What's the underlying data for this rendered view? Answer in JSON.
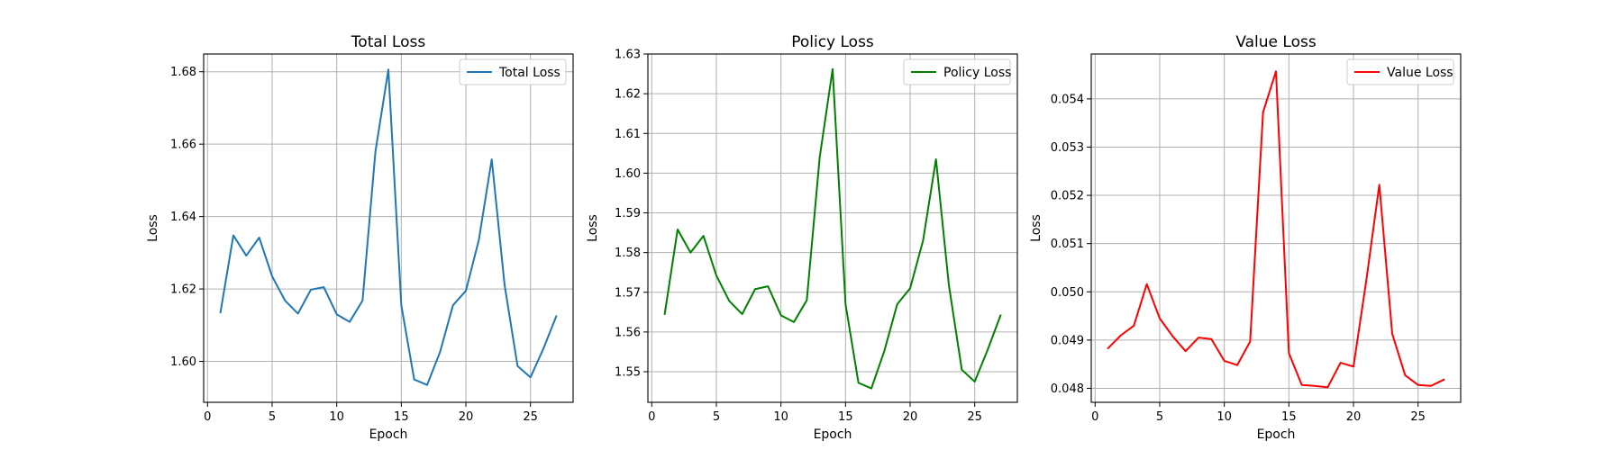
{
  "chart_data": [
    {
      "type": "line",
      "title": "Total Loss",
      "xlabel": "Epoch",
      "ylabel": "Loss",
      "xlim": [
        -0.3,
        28.3
      ],
      "ylim": [
        1.5887,
        1.6849
      ],
      "xticks": [
        0,
        5,
        10,
        15,
        20,
        25
      ],
      "xtick_labels": [
        "0",
        "5",
        "10",
        "15",
        "20",
        "25"
      ],
      "yticks": [
        1.6,
        1.62,
        1.64,
        1.66,
        1.68
      ],
      "ytick_labels": [
        "1.60",
        "1.62",
        "1.64",
        "1.66",
        "1.68"
      ],
      "grid": true,
      "legend_position": "top-right",
      "x": [
        1,
        2,
        3,
        4,
        5,
        6,
        7,
        8,
        9,
        10,
        11,
        12,
        13,
        14,
        15,
        16,
        17,
        18,
        19,
        20,
        21,
        22,
        23,
        24,
        25,
        26,
        27
      ],
      "series": [
        {
          "name": "Total Loss",
          "color": "#1f77b4",
          "values": [
            1.6135,
            1.6348,
            1.6292,
            1.6342,
            1.6235,
            1.6168,
            1.6132,
            1.6198,
            1.6205,
            1.613,
            1.6109,
            1.6168,
            1.658,
            1.6806,
            1.6155,
            1.595,
            1.5935,
            1.6026,
            1.6155,
            1.6195,
            1.6335,
            1.6558,
            1.621,
            1.5987,
            1.5956,
            1.6035,
            1.6125
          ]
        }
      ]
    },
    {
      "type": "line",
      "title": "Policy Loss",
      "xlabel": "Epoch",
      "ylabel": "Loss",
      "xlim": [
        -0.3,
        28.3
      ],
      "ylim": [
        1.5423,
        1.63
      ],
      "xticks": [
        0,
        5,
        10,
        15,
        20,
        25
      ],
      "xtick_labels": [
        "0",
        "5",
        "10",
        "15",
        "20",
        "25"
      ],
      "yticks": [
        1.55,
        1.56,
        1.57,
        1.58,
        1.59,
        1.6,
        1.61,
        1.62,
        1.63
      ],
      "ytick_labels": [
        "1.55",
        "1.56",
        "1.57",
        "1.58",
        "1.59",
        "1.60",
        "1.61",
        "1.62",
        "1.63"
      ],
      "grid": true,
      "legend_position": "top-right",
      "x": [
        1,
        2,
        3,
        4,
        5,
        6,
        7,
        8,
        9,
        10,
        11,
        12,
        13,
        14,
        15,
        16,
        17,
        18,
        19,
        20,
        21,
        22,
        23,
        24,
        25,
        26,
        27
      ],
      "series": [
        {
          "name": "Policy Loss",
          "color": "#008000",
          "values": [
            1.5645,
            1.5858,
            1.58,
            1.5842,
            1.5742,
            1.5678,
            1.5645,
            1.5708,
            1.5715,
            1.5642,
            1.5625,
            1.568,
            1.604,
            1.6262,
            1.567,
            1.5472,
            1.5458,
            1.5552,
            1.567,
            1.571,
            1.583,
            1.6035,
            1.5718,
            1.5505,
            1.5475,
            1.5555,
            1.5642
          ]
        }
      ]
    },
    {
      "type": "line",
      "title": "Value Loss",
      "xlabel": "Epoch",
      "ylabel": "Loss",
      "xlim": [
        -0.3,
        28.3
      ],
      "ylim": [
        0.04771,
        0.05493
      ],
      "xticks": [
        0,
        5,
        10,
        15,
        20,
        25
      ],
      "xtick_labels": [
        "0",
        "5",
        "10",
        "15",
        "20",
        "25"
      ],
      "yticks": [
        0.048,
        0.049,
        0.05,
        0.051,
        0.052,
        0.053,
        0.054
      ],
      "ytick_labels": [
        "0.048",
        "0.049",
        "0.050",
        "0.051",
        "0.052",
        "0.053",
        "0.054"
      ],
      "grid": true,
      "legend_position": "top-right",
      "x": [
        1,
        2,
        3,
        4,
        5,
        6,
        7,
        8,
        9,
        10,
        11,
        12,
        13,
        14,
        15,
        16,
        17,
        18,
        19,
        20,
        21,
        22,
        23,
        24,
        25,
        26,
        27
      ],
      "series": [
        {
          "name": "Value Loss",
          "color": "#ff0000",
          "values": [
            0.04883,
            0.0491,
            0.0493,
            0.05016,
            0.04945,
            0.04908,
            0.04877,
            0.04905,
            0.04902,
            0.04857,
            0.04848,
            0.04897,
            0.05372,
            0.05457,
            0.04873,
            0.04807,
            0.04805,
            0.04802,
            0.04853,
            0.04845,
            0.05025,
            0.05222,
            0.04913,
            0.04827,
            0.04807,
            0.04805,
            0.04818
          ]
        }
      ]
    }
  ]
}
